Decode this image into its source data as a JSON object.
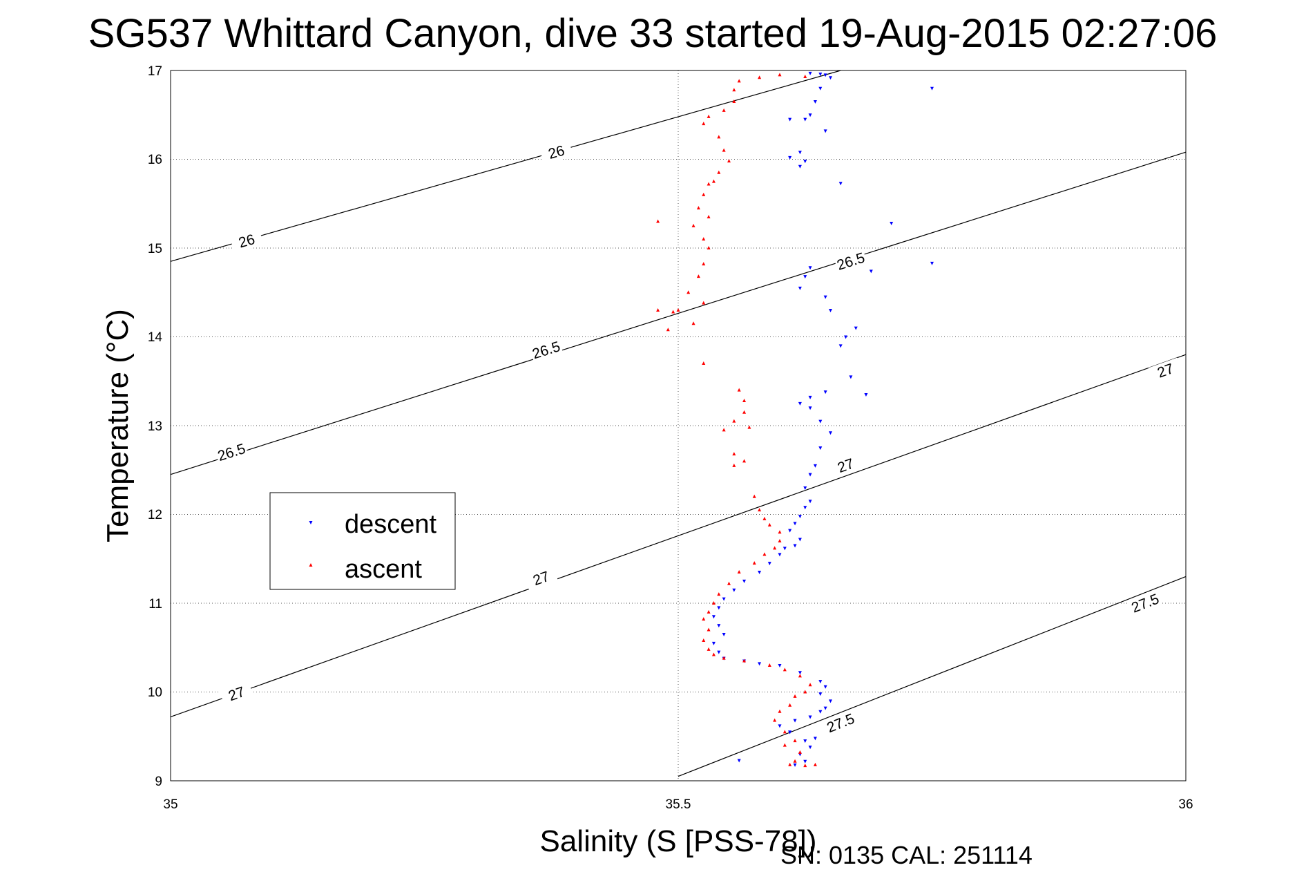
{
  "chart_data": {
    "type": "scatter",
    "title": "SG537 Whittard Canyon, dive 33 started 19-Aug-2015 02:27:06",
    "xlabel": "Salinity (S [PSS-78])",
    "ylabel": "Temperature (°C)",
    "footer": "SN: 0135  CAL: 251114",
    "xlim": [
      35,
      36
    ],
    "ylim": [
      9,
      17
    ],
    "xticks": [
      "35",
      "35.5",
      "36"
    ],
    "yticks": [
      "9",
      "10",
      "11",
      "12",
      "13",
      "14",
      "15",
      "16",
      "17"
    ],
    "grid": true,
    "legend_position": "left",
    "colors": {
      "descent": "#0000ff",
      "ascent": "#ff0000",
      "contour": "#000000"
    },
    "contours": [
      {
        "value": "26",
        "from": [
          35,
          14.85
        ],
        "to": [
          35.66,
          17.0
        ],
        "labels": [
          [
            35.075,
            15.08
          ],
          [
            35.38,
            16.08
          ]
        ]
      },
      {
        "value": "26.5",
        "from": [
          35,
          12.45
        ],
        "to": [
          36,
          16.08
        ],
        "labels": [
          [
            35.06,
            12.7
          ],
          [
            35.37,
            13.85
          ],
          [
            35.67,
            14.85
          ]
        ]
      },
      {
        "value": "27",
        "from": [
          35,
          9.72
        ],
        "to": [
          36,
          13.8
        ],
        "labels": [
          [
            35.065,
            9.98
          ],
          [
            35.365,
            11.28
          ],
          [
            35.665,
            12.55
          ],
          [
            35.98,
            13.62
          ]
        ]
      },
      {
        "value": "27.5",
        "from": [
          35.5,
          9.05
        ],
        "to": [
          36,
          11.3
        ],
        "labels": [
          [
            35.66,
            9.65
          ],
          [
            35.96,
            11.0
          ]
        ]
      }
    ],
    "series": [
      {
        "name": "descent",
        "marker": "triangle-down",
        "points": [
          [
            35.63,
            16.97
          ],
          [
            35.64,
            16.96
          ],
          [
            35.645,
            16.95
          ],
          [
            35.65,
            16.92
          ],
          [
            35.64,
            16.8
          ],
          [
            35.635,
            16.65
          ],
          [
            35.63,
            16.5
          ],
          [
            35.625,
            16.45
          ],
          [
            35.61,
            16.45
          ],
          [
            35.645,
            16.32
          ],
          [
            35.62,
            16.08
          ],
          [
            35.61,
            16.02
          ],
          [
            35.625,
            15.98
          ],
          [
            35.62,
            15.92
          ],
          [
            35.66,
            15.73
          ],
          [
            35.75,
            16.8
          ],
          [
            35.71,
            15.28
          ],
          [
            35.75,
            14.83
          ],
          [
            35.69,
            14.74
          ],
          [
            35.63,
            14.78
          ],
          [
            35.625,
            14.68
          ],
          [
            35.62,
            14.55
          ],
          [
            35.645,
            14.45
          ],
          [
            35.65,
            14.3
          ],
          [
            35.675,
            14.1
          ],
          [
            35.665,
            14.0
          ],
          [
            35.66,
            13.9
          ],
          [
            35.67,
            13.55
          ],
          [
            35.685,
            13.35
          ],
          [
            35.645,
            13.38
          ],
          [
            35.63,
            13.32
          ],
          [
            35.62,
            13.25
          ],
          [
            35.63,
            13.2
          ],
          [
            35.64,
            13.05
          ],
          [
            35.65,
            12.92
          ],
          [
            35.64,
            12.75
          ],
          [
            35.635,
            12.55
          ],
          [
            35.63,
            12.45
          ],
          [
            35.625,
            12.3
          ],
          [
            35.63,
            12.15
          ],
          [
            35.625,
            12.08
          ],
          [
            35.62,
            11.98
          ],
          [
            35.615,
            11.9
          ],
          [
            35.61,
            11.82
          ],
          [
            35.62,
            11.72
          ],
          [
            35.615,
            11.65
          ],
          [
            35.605,
            11.62
          ],
          [
            35.6,
            11.55
          ],
          [
            35.59,
            11.45
          ],
          [
            35.58,
            11.35
          ],
          [
            35.565,
            11.25
          ],
          [
            35.555,
            11.15
          ],
          [
            35.545,
            11.05
          ],
          [
            35.54,
            10.95
          ],
          [
            35.535,
            10.85
          ],
          [
            35.54,
            10.75
          ],
          [
            35.545,
            10.65
          ],
          [
            35.535,
            10.55
          ],
          [
            35.54,
            10.45
          ],
          [
            35.545,
            10.38
          ],
          [
            35.565,
            10.35
          ],
          [
            35.58,
            10.32
          ],
          [
            35.6,
            10.3
          ],
          [
            35.62,
            10.22
          ],
          [
            35.64,
            10.12
          ],
          [
            35.645,
            10.06
          ],
          [
            35.64,
            9.98
          ],
          [
            35.65,
            9.9
          ],
          [
            35.645,
            9.82
          ],
          [
            35.64,
            9.78
          ],
          [
            35.63,
            9.72
          ],
          [
            35.615,
            9.68
          ],
          [
            35.6,
            9.62
          ],
          [
            35.61,
            9.55
          ],
          [
            35.625,
            9.45
          ],
          [
            35.63,
            9.38
          ],
          [
            35.62,
            9.3
          ],
          [
            35.625,
            9.22
          ],
          [
            35.615,
            9.18
          ],
          [
            35.56,
            9.23
          ],
          [
            35.61,
            9.55
          ],
          [
            35.635,
            9.48
          ]
        ]
      },
      {
        "name": "ascent",
        "marker": "triangle-up",
        "points": [
          [
            35.625,
            16.93
          ],
          [
            35.6,
            16.95
          ],
          [
            35.58,
            16.92
          ],
          [
            35.56,
            16.88
          ],
          [
            35.555,
            16.78
          ],
          [
            35.555,
            16.65
          ],
          [
            35.545,
            16.55
          ],
          [
            35.53,
            16.48
          ],
          [
            35.525,
            16.4
          ],
          [
            35.54,
            16.25
          ],
          [
            35.545,
            16.1
          ],
          [
            35.55,
            15.98
          ],
          [
            35.54,
            15.85
          ],
          [
            35.535,
            15.75
          ],
          [
            35.53,
            15.72
          ],
          [
            35.525,
            15.6
          ],
          [
            35.52,
            15.45
          ],
          [
            35.53,
            15.35
          ],
          [
            35.515,
            15.25
          ],
          [
            35.525,
            15.1
          ],
          [
            35.53,
            15.0
          ],
          [
            35.525,
            14.82
          ],
          [
            35.52,
            14.68
          ],
          [
            35.51,
            14.5
          ],
          [
            35.525,
            14.38
          ],
          [
            35.5,
            14.3
          ],
          [
            35.495,
            14.28
          ],
          [
            35.49,
            14.08
          ],
          [
            35.525,
            13.7
          ],
          [
            35.56,
            13.4
          ],
          [
            35.565,
            13.28
          ],
          [
            35.555,
            13.05
          ],
          [
            35.545,
            12.95
          ],
          [
            35.565,
            13.15
          ],
          [
            35.57,
            12.98
          ],
          [
            35.555,
            12.68
          ],
          [
            35.565,
            12.6
          ],
          [
            35.555,
            12.55
          ],
          [
            35.575,
            12.2
          ],
          [
            35.58,
            12.05
          ],
          [
            35.585,
            11.95
          ],
          [
            35.59,
            11.88
          ],
          [
            35.6,
            11.8
          ],
          [
            35.6,
            11.7
          ],
          [
            35.595,
            11.62
          ],
          [
            35.585,
            11.55
          ],
          [
            35.575,
            11.45
          ],
          [
            35.56,
            11.35
          ],
          [
            35.55,
            11.22
          ],
          [
            35.54,
            11.1
          ],
          [
            35.535,
            11.0
          ],
          [
            35.53,
            10.9
          ],
          [
            35.525,
            10.82
          ],
          [
            35.53,
            10.7
          ],
          [
            35.525,
            10.58
          ],
          [
            35.53,
            10.48
          ],
          [
            35.535,
            10.42
          ],
          [
            35.545,
            10.38
          ],
          [
            35.565,
            10.35
          ],
          [
            35.59,
            10.3
          ],
          [
            35.605,
            10.25
          ],
          [
            35.62,
            10.18
          ],
          [
            35.63,
            10.08
          ],
          [
            35.625,
            10.0
          ],
          [
            35.615,
            9.95
          ],
          [
            35.61,
            9.85
          ],
          [
            35.6,
            9.78
          ],
          [
            35.595,
            9.68
          ],
          [
            35.605,
            9.55
          ],
          [
            35.615,
            9.45
          ],
          [
            35.605,
            9.4
          ],
          [
            35.62,
            9.32
          ],
          [
            35.615,
            9.22
          ],
          [
            35.61,
            9.18
          ],
          [
            35.625,
            9.17
          ],
          [
            35.635,
            9.18
          ],
          [
            35.48,
            15.3
          ],
          [
            35.48,
            14.3
          ],
          [
            35.515,
            14.15
          ]
        ]
      }
    ]
  }
}
